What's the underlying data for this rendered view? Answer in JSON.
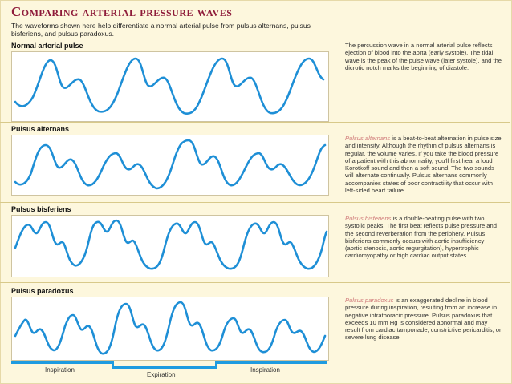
{
  "title": "Comparing arterial pressure waves",
  "intro": "The waveforms shown here help differentiate a normal arterial pulse from pulsus alternans, pulsus bisferiens, and pulsus paradoxus.",
  "sections": [
    {
      "label": "Normal arterial pulse",
      "desc_em": "",
      "desc": "The percussion wave in a normal arterial pulse reflects ejection of blood into the aorta (early systole). The tidal wave is the peak of the pulse wave (later systole), and the dicrotic notch marks the beginning of diastole."
    },
    {
      "label": "Pulsus alternans",
      "desc_em": "Pulsus alternans",
      "desc": " is a beat-to-beat alternation in pulse size and intensity. Although the rhythm of pulsus alternans is regular, the volume varies. If you take the blood pressure of a patient with this abnormality, you'll first hear a loud Korotkoff sound and then a soft sound. The two sounds will alternate continually. Pulsus alternans commonly accompanies states of poor contractility that occur with left-sided heart failure."
    },
    {
      "label": "Pulsus bisferiens",
      "desc_em": "Pulsus bisferiens",
      "desc": " is a double-beating pulse with two systolic peaks. The first beat reflects pulse pressure and the second reverberation from the periphery. Pulsus bisferiens commonly occurs with aortic insufficiency (aortic stenosis, aortic regurgitation), hypertrophic cardiomyopathy or high cardiac output states."
    },
    {
      "label": "Pulsus paradoxus",
      "desc_em": "Pulsus paradoxus",
      "desc": " is an exaggerated decline in blood pressure during inspiration, resulting from an increase in negative intrathoracic pressure. Pulsus paradoxus that exceeds 10 mm Hg is considered abnormal and may result from cardiac tamponade, constrictive pericarditis, or severe lung disease."
    }
  ],
  "respiration": {
    "inspiration_1": "Inspiration",
    "expiration": "Expiration",
    "inspiration_2": "Inspiration"
  },
  "colors": {
    "title": "#8e1b3a",
    "wave": "#1e8fd6",
    "panel_bg": "#fdf7dd",
    "emphasis": "#d07a7a"
  }
}
